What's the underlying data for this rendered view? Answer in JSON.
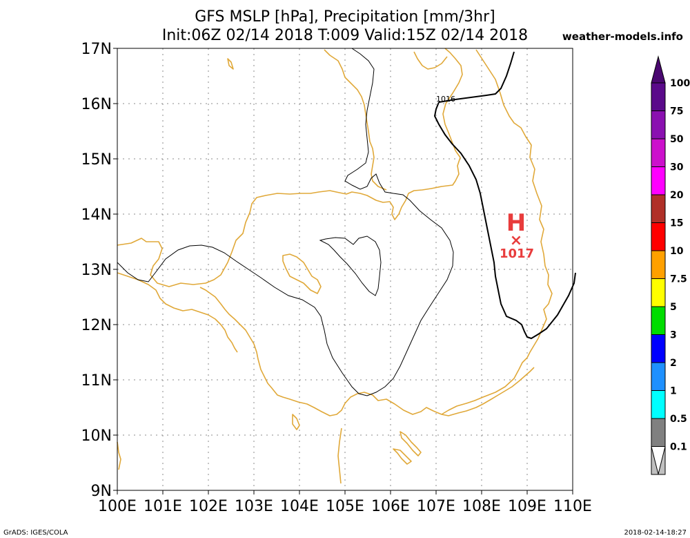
{
  "title": {
    "line1": "GFS MSLP [hPa], Precipitation [mm/3hr]",
    "line2": "Init:06Z 02/14 2018 T:009 Valid:15Z 02/14 2018"
  },
  "brand": "weather-models.info",
  "map": {
    "lat_labels": [
      "17N",
      "16N",
      "15N",
      "14N",
      "13N",
      "12N",
      "11N",
      "10N",
      "9N"
    ],
    "lon_labels": [
      "100E",
      "101E",
      "102E",
      "103E",
      "104E",
      "105E",
      "106E",
      "107E",
      "108E",
      "109E",
      "110E"
    ],
    "isobar_label": "1016",
    "high_center": {
      "symbol": "H",
      "marker": "×",
      "pressure": "1017"
    },
    "colors": {
      "coast": "#e0a838",
      "isobar": "#000000",
      "high": "#e83c3c"
    }
  },
  "legend": {
    "levels": [
      {
        "label": "100",
        "color": "#5a0a8a"
      },
      {
        "label": "75",
        "color": "#8a10b0"
      },
      {
        "label": "50",
        "color": "#cc10cc"
      },
      {
        "label": "30",
        "color": "#ff00ff"
      },
      {
        "label": "20",
        "color": "#b03028"
      },
      {
        "label": "15",
        "color": "#ff0000"
      },
      {
        "label": "10",
        "color": "#ffa000"
      },
      {
        "label": "7.5",
        "color": "#ffff00"
      },
      {
        "label": "5",
        "color": "#00dd00"
      },
      {
        "label": "3",
        "color": "#0000ff"
      },
      {
        "label": "2",
        "color": "#1e90ff"
      },
      {
        "label": "1",
        "color": "#00ffff"
      },
      {
        "label": "0.5",
        "color": "#808080"
      },
      {
        "label": "0.1",
        "color": "#c0c0c0"
      }
    ],
    "top_color": "#4a0870"
  },
  "footer": {
    "left": "GrADS: IGES/COLA",
    "right": "2018-02-14-18:27"
  }
}
